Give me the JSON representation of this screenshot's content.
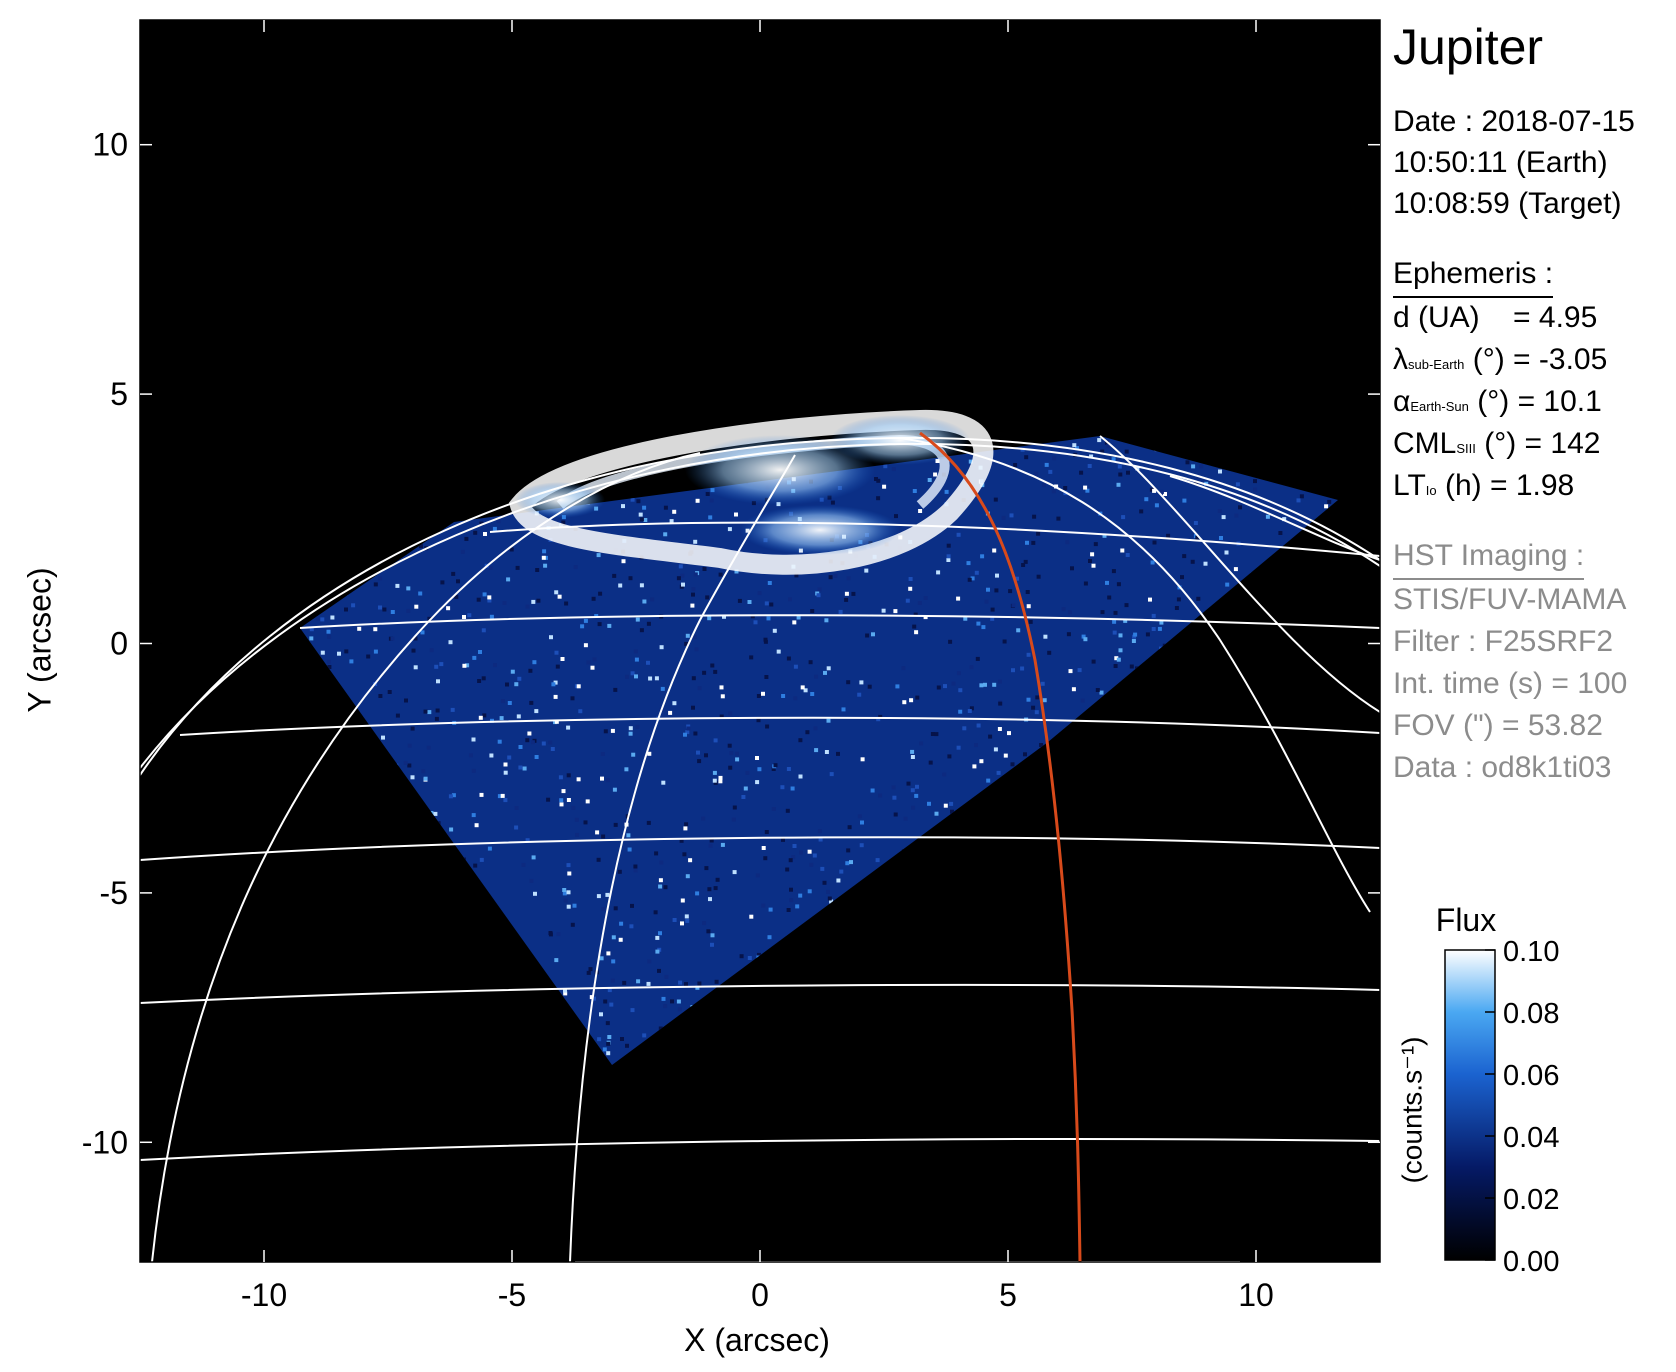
{
  "figure": {
    "title": "Jupiter",
    "observation": {
      "date_line": "Date : 2018-07-15",
      "earth_time": "10:50:11 (Earth)",
      "target_time": "10:08:59 (Target)"
    },
    "ephemeris": {
      "heading": "Ephemeris :",
      "distance": {
        "label": "d (UA)",
        "value": "= 4.95"
      },
      "lambda": {
        "symbol": "λ",
        "sub": "sub-Earth",
        "unit": "(°)",
        "value": "= -3.05"
      },
      "alpha": {
        "symbol": "α",
        "sub": "Earth-Sun",
        "unit": "(°)",
        "value": "= 10.1"
      },
      "cml": {
        "symbol": "CML",
        "sub": "SIII",
        "unit": "(°)",
        "value": "= 142"
      },
      "lt": {
        "symbol": "LT",
        "sub": "Io",
        "unit": "(h)",
        "value": "= 1.98"
      }
    },
    "imaging": {
      "heading": "HST Imaging :",
      "instrument": "STIS/FUV-MAMA",
      "filter": "Filter : F25SRF2",
      "int_time": "Int. time (s) = 100",
      "fov": "FOV (\") = 53.82",
      "data_id": "Data : od8k1ti03"
    },
    "axes": {
      "xlabel": "X (arcsec)",
      "ylabel": "Y (arcsec)",
      "xlim": [
        -12.5,
        12.5
      ],
      "ylim": [
        -12.4,
        12.5
      ],
      "xticks": [
        -10,
        -5,
        0,
        5,
        10
      ],
      "yticks": [
        -10,
        -5,
        0,
        5,
        10
      ]
    },
    "colorbar": {
      "title": "Flux",
      "unit": "(counts.s⁻¹)",
      "range": [
        0.0,
        0.1
      ],
      "ticks": [
        "0.00",
        "0.02",
        "0.04",
        "0.06",
        "0.08",
        "0.10"
      ]
    },
    "colors": {
      "background": "#000000",
      "grid": "#ffffff",
      "io_footprint": "#d84a1b",
      "emission_low": "#05103e",
      "emission_mid": "#1d6fd6",
      "emission_high": "#ffffff"
    }
  }
}
